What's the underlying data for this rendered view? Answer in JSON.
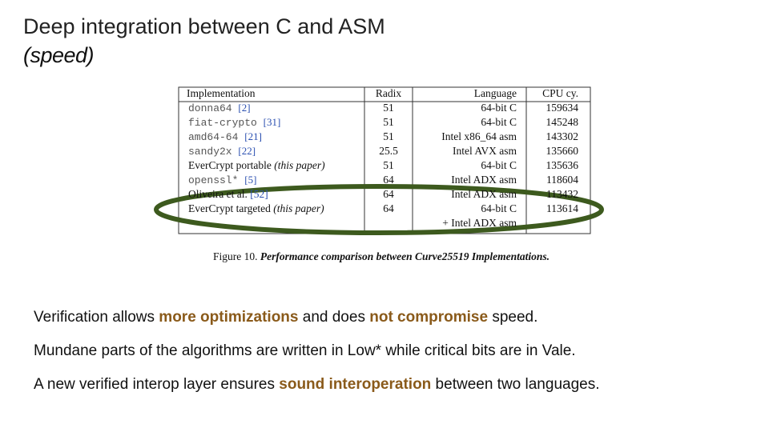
{
  "title": "Deep integration between C and ASM",
  "subtitle": "(speed)",
  "table": {
    "header": [
      "Implementation",
      "Radix",
      "Language",
      "CPU cy."
    ],
    "rows": [
      {
        "name": "donna64",
        "ref": "[2]",
        "radix": "51",
        "language": [
          "64-bit C"
        ],
        "cycles": "159634"
      },
      {
        "name": "fiat-crypto",
        "ref": "[31]",
        "radix": "51",
        "language": [
          "64-bit C"
        ],
        "cycles": "145248"
      },
      {
        "name": "amd64-64",
        "ref": "[21]",
        "radix": "51",
        "language": [
          "Intel x86_64 asm"
        ],
        "cycles": "143302"
      },
      {
        "name": "sandy2x",
        "ref": "[22]",
        "radix": "25.5",
        "language": [
          "Intel AVX asm"
        ],
        "cycles": "135660"
      },
      {
        "name": "EverCrypt portable",
        "note": "(this paper)",
        "radix": "51",
        "language": [
          "64-bit C"
        ],
        "cycles": "135636"
      },
      {
        "name": "openssl*",
        "ref": "[5]",
        "radix": "64",
        "language": [
          "Intel ADX asm"
        ],
        "cycles": "118604"
      },
      {
        "name": "Oliveira et al.",
        "ref": "[52]",
        "radix": "64",
        "language": [
          "Intel ADX asm"
        ],
        "cycles": "113432"
      },
      {
        "name": "EverCrypt targeted",
        "note": "(this paper)",
        "radix": "64",
        "language": [
          "64-bit C",
          "+ Intel ADX asm"
        ],
        "cycles": "113614"
      }
    ],
    "caption": [
      "Figure 10.",
      "Performance comparison between Curve25519 Implementations."
    ]
  },
  "bullets": [
    [
      {
        "text": "Verification allows "
      },
      {
        "text": "more optimizations",
        "emphasis": true
      },
      {
        "text": " and does "
      },
      {
        "text": "not compromise",
        "emphasis": true
      },
      {
        "text": " speed."
      }
    ],
    [
      {
        "text": "Mundane parts of the algorithms are written in Low* while critical bits are in Vale."
      }
    ],
    [
      {
        "text": "A new verified interop layer ensures "
      },
      {
        "text": "sound interoperation",
        "emphasis": true
      },
      {
        "text": " between two languages."
      }
    ]
  ]
}
